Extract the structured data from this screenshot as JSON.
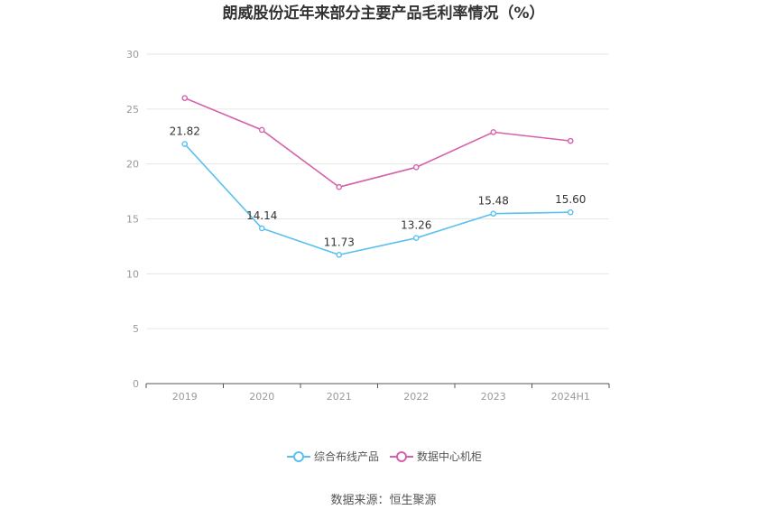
{
  "chart_data": {
    "type": "line",
    "title": "朗威股份近年来部分主要产品毛利率情况（%）",
    "categories": [
      "2019",
      "2020",
      "2021",
      "2022",
      "2023",
      "2024H1"
    ],
    "ylim": [
      0,
      30
    ],
    "yticks": [
      0,
      5,
      10,
      15,
      20,
      25,
      30
    ],
    "grid": true,
    "legend_position": "bottom",
    "series": [
      {
        "name": "综合布线产品",
        "color": "#5bc0ef",
        "values": [
          21.82,
          14.14,
          11.73,
          13.26,
          15.48,
          15.6
        ],
        "labels": [
          "21.82",
          "14.14",
          "11.73",
          "13.26",
          "15.48",
          "15.60"
        ]
      },
      {
        "name": "数据中心机柜",
        "color": "#d462aa",
        "values": [
          26.0,
          23.1,
          17.9,
          19.7,
          22.9,
          22.1
        ]
      }
    ]
  },
  "source": "数据来源：恒生聚源"
}
